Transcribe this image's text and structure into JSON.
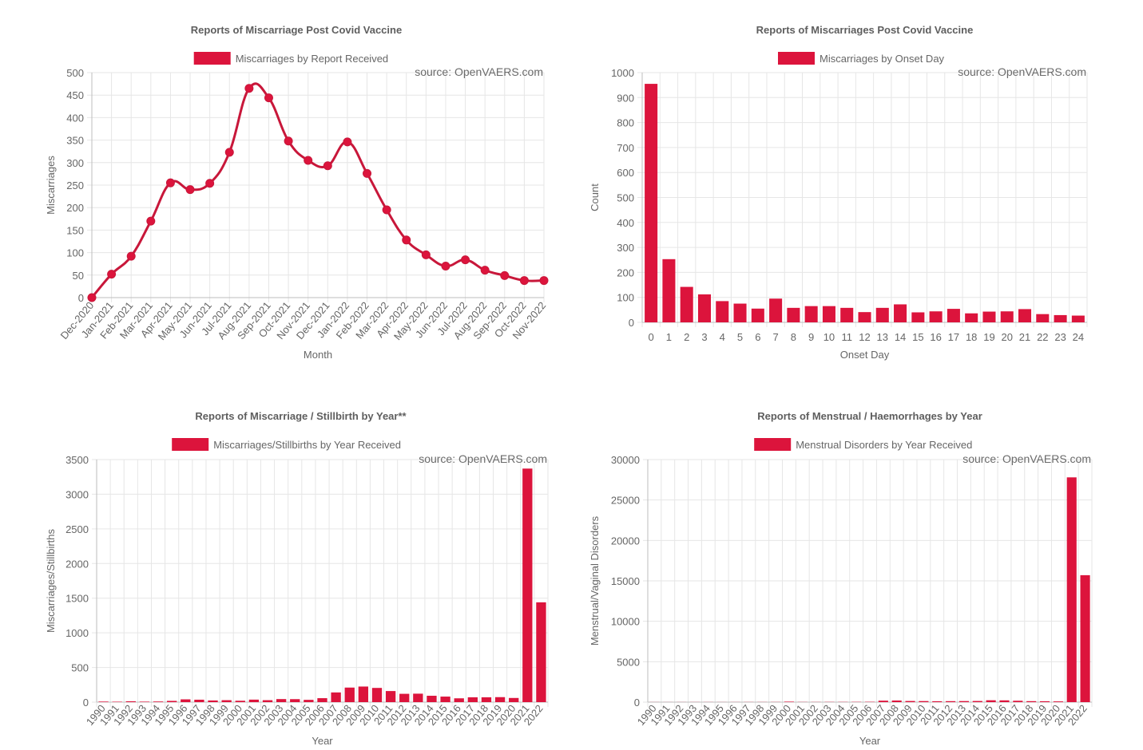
{
  "colors": {
    "series": "#dc143c",
    "line": "#c8173a",
    "grid": "#e6e6e6",
    "text": "#666666"
  },
  "chart_data": [
    {
      "type": "line",
      "title": "Reports of Miscarriage Post Covid Vaccine",
      "legend": "Miscarriages by Report Received",
      "source": "source: OpenVAERS.com",
      "xlabel": "Month",
      "ylabel": "Miscarriages",
      "ylim": [
        0,
        500
      ],
      "yticks": [
        "0",
        "50",
        "100",
        "150",
        "200",
        "250",
        "300",
        "350",
        "400",
        "450",
        "500"
      ],
      "grid": true,
      "legend_position": "top",
      "categories": [
        "Dec-2020",
        "Jan-2021",
        "Feb-2021",
        "Mar-2021",
        "Apr-2021",
        "May-2021",
        "Jun-2021",
        "Jul-2021",
        "Aug-2021",
        "Sep-2021",
        "Oct-2021",
        "Nov-2021",
        "Dec-2021",
        "Jan-2022",
        "Feb-2022",
        "Mar-2022",
        "Apr-2022",
        "May-2022",
        "Jun-2022",
        "Jul-2022",
        "Aug-2022",
        "Sep-2022",
        "Oct-2022",
        "Nov-2022"
      ],
      "values": [
        0,
        52,
        92,
        170,
        255,
        240,
        254,
        323,
        465,
        444,
        348,
        305,
        293,
        346,
        276,
        195,
        128,
        95,
        70,
        84,
        61,
        49,
        38,
        38
      ]
    },
    {
      "type": "bar",
      "title": "Reports of Miscarriages Post Covid Vaccine",
      "legend": "Miscarriages by Onset Day",
      "source": "source: OpenVAERS.com",
      "xlabel": "Onset Day",
      "ylabel": "Count",
      "ylim": [
        0,
        1000
      ],
      "yticks": [
        "0",
        "100",
        "200",
        "300",
        "400",
        "500",
        "600",
        "700",
        "800",
        "900",
        "1000"
      ],
      "grid": true,
      "legend_position": "top",
      "categories": [
        "0",
        "1",
        "2",
        "3",
        "4",
        "5",
        "6",
        "7",
        "8",
        "9",
        "10",
        "11",
        "12",
        "13",
        "14",
        "15",
        "16",
        "17",
        "18",
        "19",
        "20",
        "21",
        "22",
        "23",
        "24"
      ],
      "values": [
        955,
        253,
        142,
        112,
        85,
        75,
        55,
        95,
        58,
        65,
        65,
        58,
        41,
        58,
        72,
        40,
        44,
        54,
        36,
        43,
        44,
        53,
        33,
        29,
        27
      ]
    },
    {
      "type": "bar",
      "title": "Reports of Miscarriage / Stillbirth by Year**",
      "legend": "Miscarriages/Stillbirths by Year Received",
      "source": "source: OpenVAERS.com",
      "xlabel": "Year",
      "ylabel": "Miscarriages/Stillbirths",
      "ylim": [
        0,
        3500
      ],
      "yticks": [
        "0",
        "500",
        "1000",
        "1500",
        "2000",
        "2500",
        "3000",
        "3500"
      ],
      "grid": true,
      "legend_position": "top",
      "categories": [
        "1990",
        "1991",
        "1992",
        "1993",
        "1994",
        "1995",
        "1996",
        "1997",
        "1998",
        "1999",
        "2000",
        "2001",
        "2002",
        "2003",
        "2004",
        "2005",
        "2006",
        "2007",
        "2008",
        "2009",
        "2010",
        "2011",
        "2012",
        "2013",
        "2014",
        "2015",
        "2016",
        "2017",
        "2018",
        "2019",
        "2020",
        "2021",
        "2022"
      ],
      "values": [
        8,
        6,
        12,
        7,
        9,
        18,
        40,
        35,
        24,
        28,
        20,
        36,
        28,
        44,
        43,
        33,
        57,
        140,
        210,
        225,
        205,
        160,
        120,
        122,
        92,
        80,
        55,
        70,
        70,
        72,
        60,
        3370,
        1440
      ]
    },
    {
      "type": "bar",
      "title": "Reports of Menstrual / Haemorrhages by Year",
      "legend": "Menstrual Disorders by Year Received",
      "source": "source: OpenVAERS.com",
      "xlabel": "Year",
      "ylabel": "Menstrual/Vaginal Disorders",
      "ylim": [
        0,
        30000
      ],
      "yticks": [
        "0",
        "5000",
        "10000",
        "15000",
        "20000",
        "25000",
        "30000"
      ],
      "grid": true,
      "legend_position": "top",
      "categories": [
        "1990",
        "1991",
        "1992",
        "1993",
        "1994",
        "1995",
        "1996",
        "1997",
        "1998",
        "1999",
        "2000",
        "2001",
        "2002",
        "2003",
        "2004",
        "2005",
        "2006",
        "2007",
        "2008",
        "2009",
        "2010",
        "2011",
        "2012",
        "2013",
        "2014",
        "2015",
        "2016",
        "2017",
        "2018",
        "2019",
        "2020",
        "2021",
        "2022"
      ],
      "values": [
        10,
        8,
        10,
        12,
        12,
        10,
        12,
        15,
        15,
        18,
        60,
        20,
        18,
        25,
        25,
        30,
        40,
        180,
        200,
        140,
        130,
        110,
        120,
        130,
        140,
        230,
        220,
        170,
        120,
        110,
        90,
        27800,
        15700
      ]
    }
  ]
}
